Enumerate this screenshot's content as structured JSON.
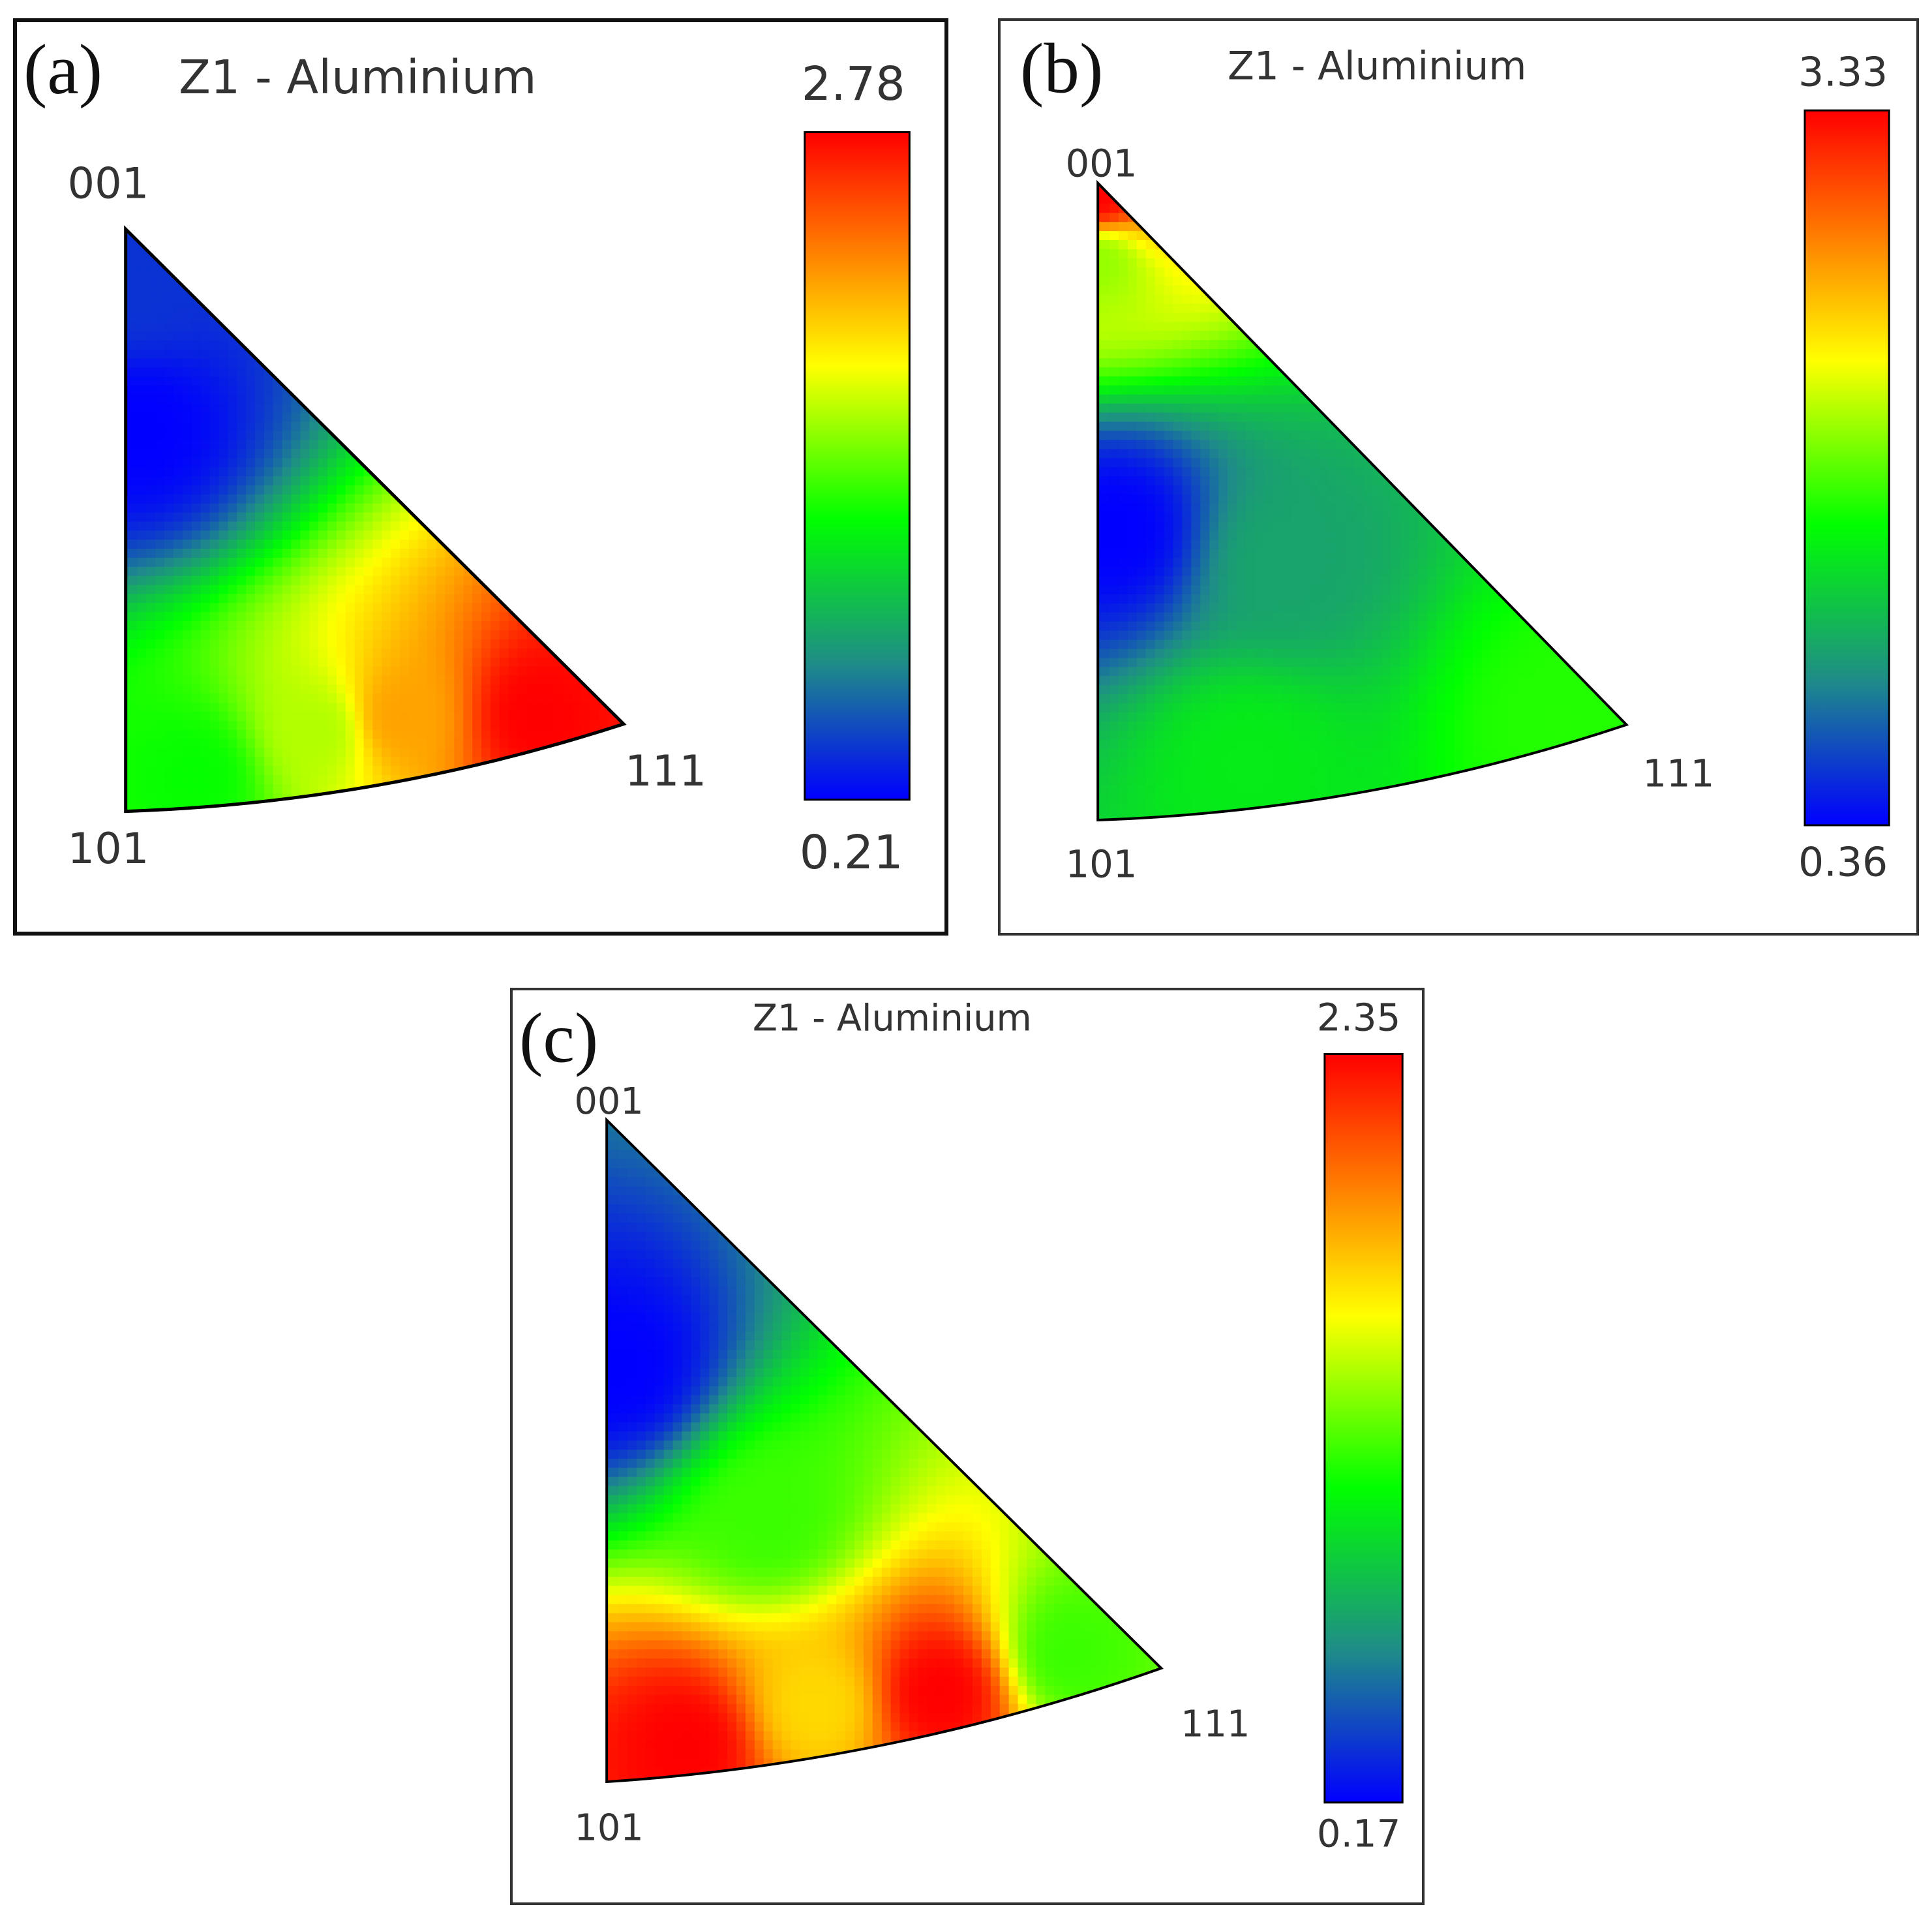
{
  "chart_data": [
    {
      "type": "heatmap",
      "panel_label": "(a)",
      "title": "Z1 - Aluminium",
      "poles": [
        "001",
        "101",
        "111"
      ],
      "colorbar": {
        "max": 2.78,
        "min": 0.21,
        "max_label": "2.78",
        "min_label": "0.21",
        "colormap": [
          "#0000ff",
          "#1f8a8a",
          "#00ff00",
          "#ffff00",
          "#ff8000",
          "#ff0000"
        ]
      },
      "hotspots": [
        {
          "u": 0.86,
          "v": 0.04,
          "value": 2.78
        },
        {
          "u": 0.6,
          "v": 0.08,
          "value": 2.2
        },
        {
          "u": 0.42,
          "v": 0.08,
          "value": 1.7
        },
        {
          "u": 0.15,
          "v": 0.04,
          "value": 1.3
        },
        {
          "u": 0.08,
          "v": 0.65,
          "value": 0.21
        },
        {
          "u": 0.1,
          "v": 0.9,
          "value": 0.4
        }
      ]
    },
    {
      "type": "heatmap",
      "panel_label": "(b)",
      "title": "Z1 - Aluminium",
      "poles": [
        "001",
        "101",
        "111"
      ],
      "colorbar": {
        "max": 3.33,
        "min": 0.36,
        "max_label": "3.33",
        "min_label": "0.36",
        "colormap": [
          "#0000ff",
          "#1f8a8a",
          "#00ff00",
          "#ffff00",
          "#ff8000",
          "#ff0000"
        ]
      },
      "hotspots": [
        {
          "u": 0.02,
          "v": 0.98,
          "value": 3.33
        },
        {
          "u": 0.04,
          "v": 0.88,
          "value": 2.0
        },
        {
          "u": 0.06,
          "v": 0.45,
          "value": 0.36
        },
        {
          "u": 0.3,
          "v": 0.05,
          "value": 1.5
        },
        {
          "u": 0.9,
          "v": 0.03,
          "value": 1.7
        },
        {
          "u": 0.55,
          "v": 0.35,
          "value": 1.1
        }
      ]
    },
    {
      "type": "heatmap",
      "panel_label": "(c)",
      "title": "Z1 - Aluminium",
      "poles": [
        "001",
        "101",
        "111"
      ],
      "colorbar": {
        "max": 2.35,
        "min": 0.17,
        "max_label": "2.35",
        "min_label": "0.17",
        "colormap": [
          "#0000ff",
          "#1f8a8a",
          "#00ff00",
          "#ffff00",
          "#ff8000",
          "#ff0000"
        ]
      },
      "hotspots": [
        {
          "u": 0.15,
          "v": 0.03,
          "value": 2.35
        },
        {
          "u": 0.62,
          "v": 0.03,
          "value": 2.35
        },
        {
          "u": 0.4,
          "v": 0.05,
          "value": 1.7
        },
        {
          "u": 0.06,
          "v": 0.62,
          "value": 0.17
        },
        {
          "u": 0.45,
          "v": 0.35,
          "value": 1.2
        },
        {
          "u": 0.88,
          "v": 0.05,
          "value": 1.2
        }
      ]
    }
  ]
}
